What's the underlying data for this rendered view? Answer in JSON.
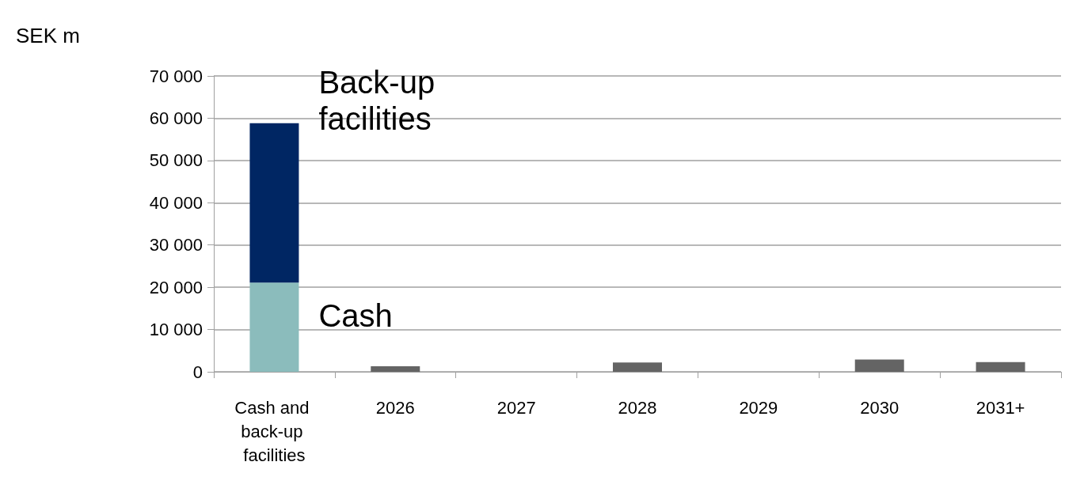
{
  "chart_data": {
    "type": "bar",
    "ylabel": "SEK m",
    "stacked": true,
    "grid": "y",
    "legend": false,
    "categories": [
      "Cash and back-up facilities",
      "2026",
      "2027",
      "2028",
      "2029",
      "2030",
      "2031+"
    ],
    "ylim": [
      0,
      70000
    ],
    "yticks": [
      {
        "value": 0,
        "label": "0"
      },
      {
        "value": 10000,
        "label": "10 000"
      },
      {
        "value": 20000,
        "label": "20 000"
      },
      {
        "value": 30000,
        "label": "30 000"
      },
      {
        "value": 40000,
        "label": "40 000"
      },
      {
        "value": 50000,
        "label": "50 000"
      },
      {
        "value": 60000,
        "label": "60 000"
      },
      {
        "value": 70000,
        "label": "70 000"
      }
    ],
    "series": [
      {
        "name": "Cash",
        "color": "#8bbcbc",
        "values": [
          21100,
          null,
          null,
          null,
          null,
          null,
          null
        ]
      },
      {
        "name": "Back-up facilities",
        "color": "#002663",
        "values": [
          37700,
          null,
          null,
          null,
          null,
          null,
          null
        ]
      },
      {
        "color": "#646464",
        "values": [
          null,
          1300,
          0,
          2200,
          0,
          2900,
          2300
        ]
      }
    ]
  }
}
